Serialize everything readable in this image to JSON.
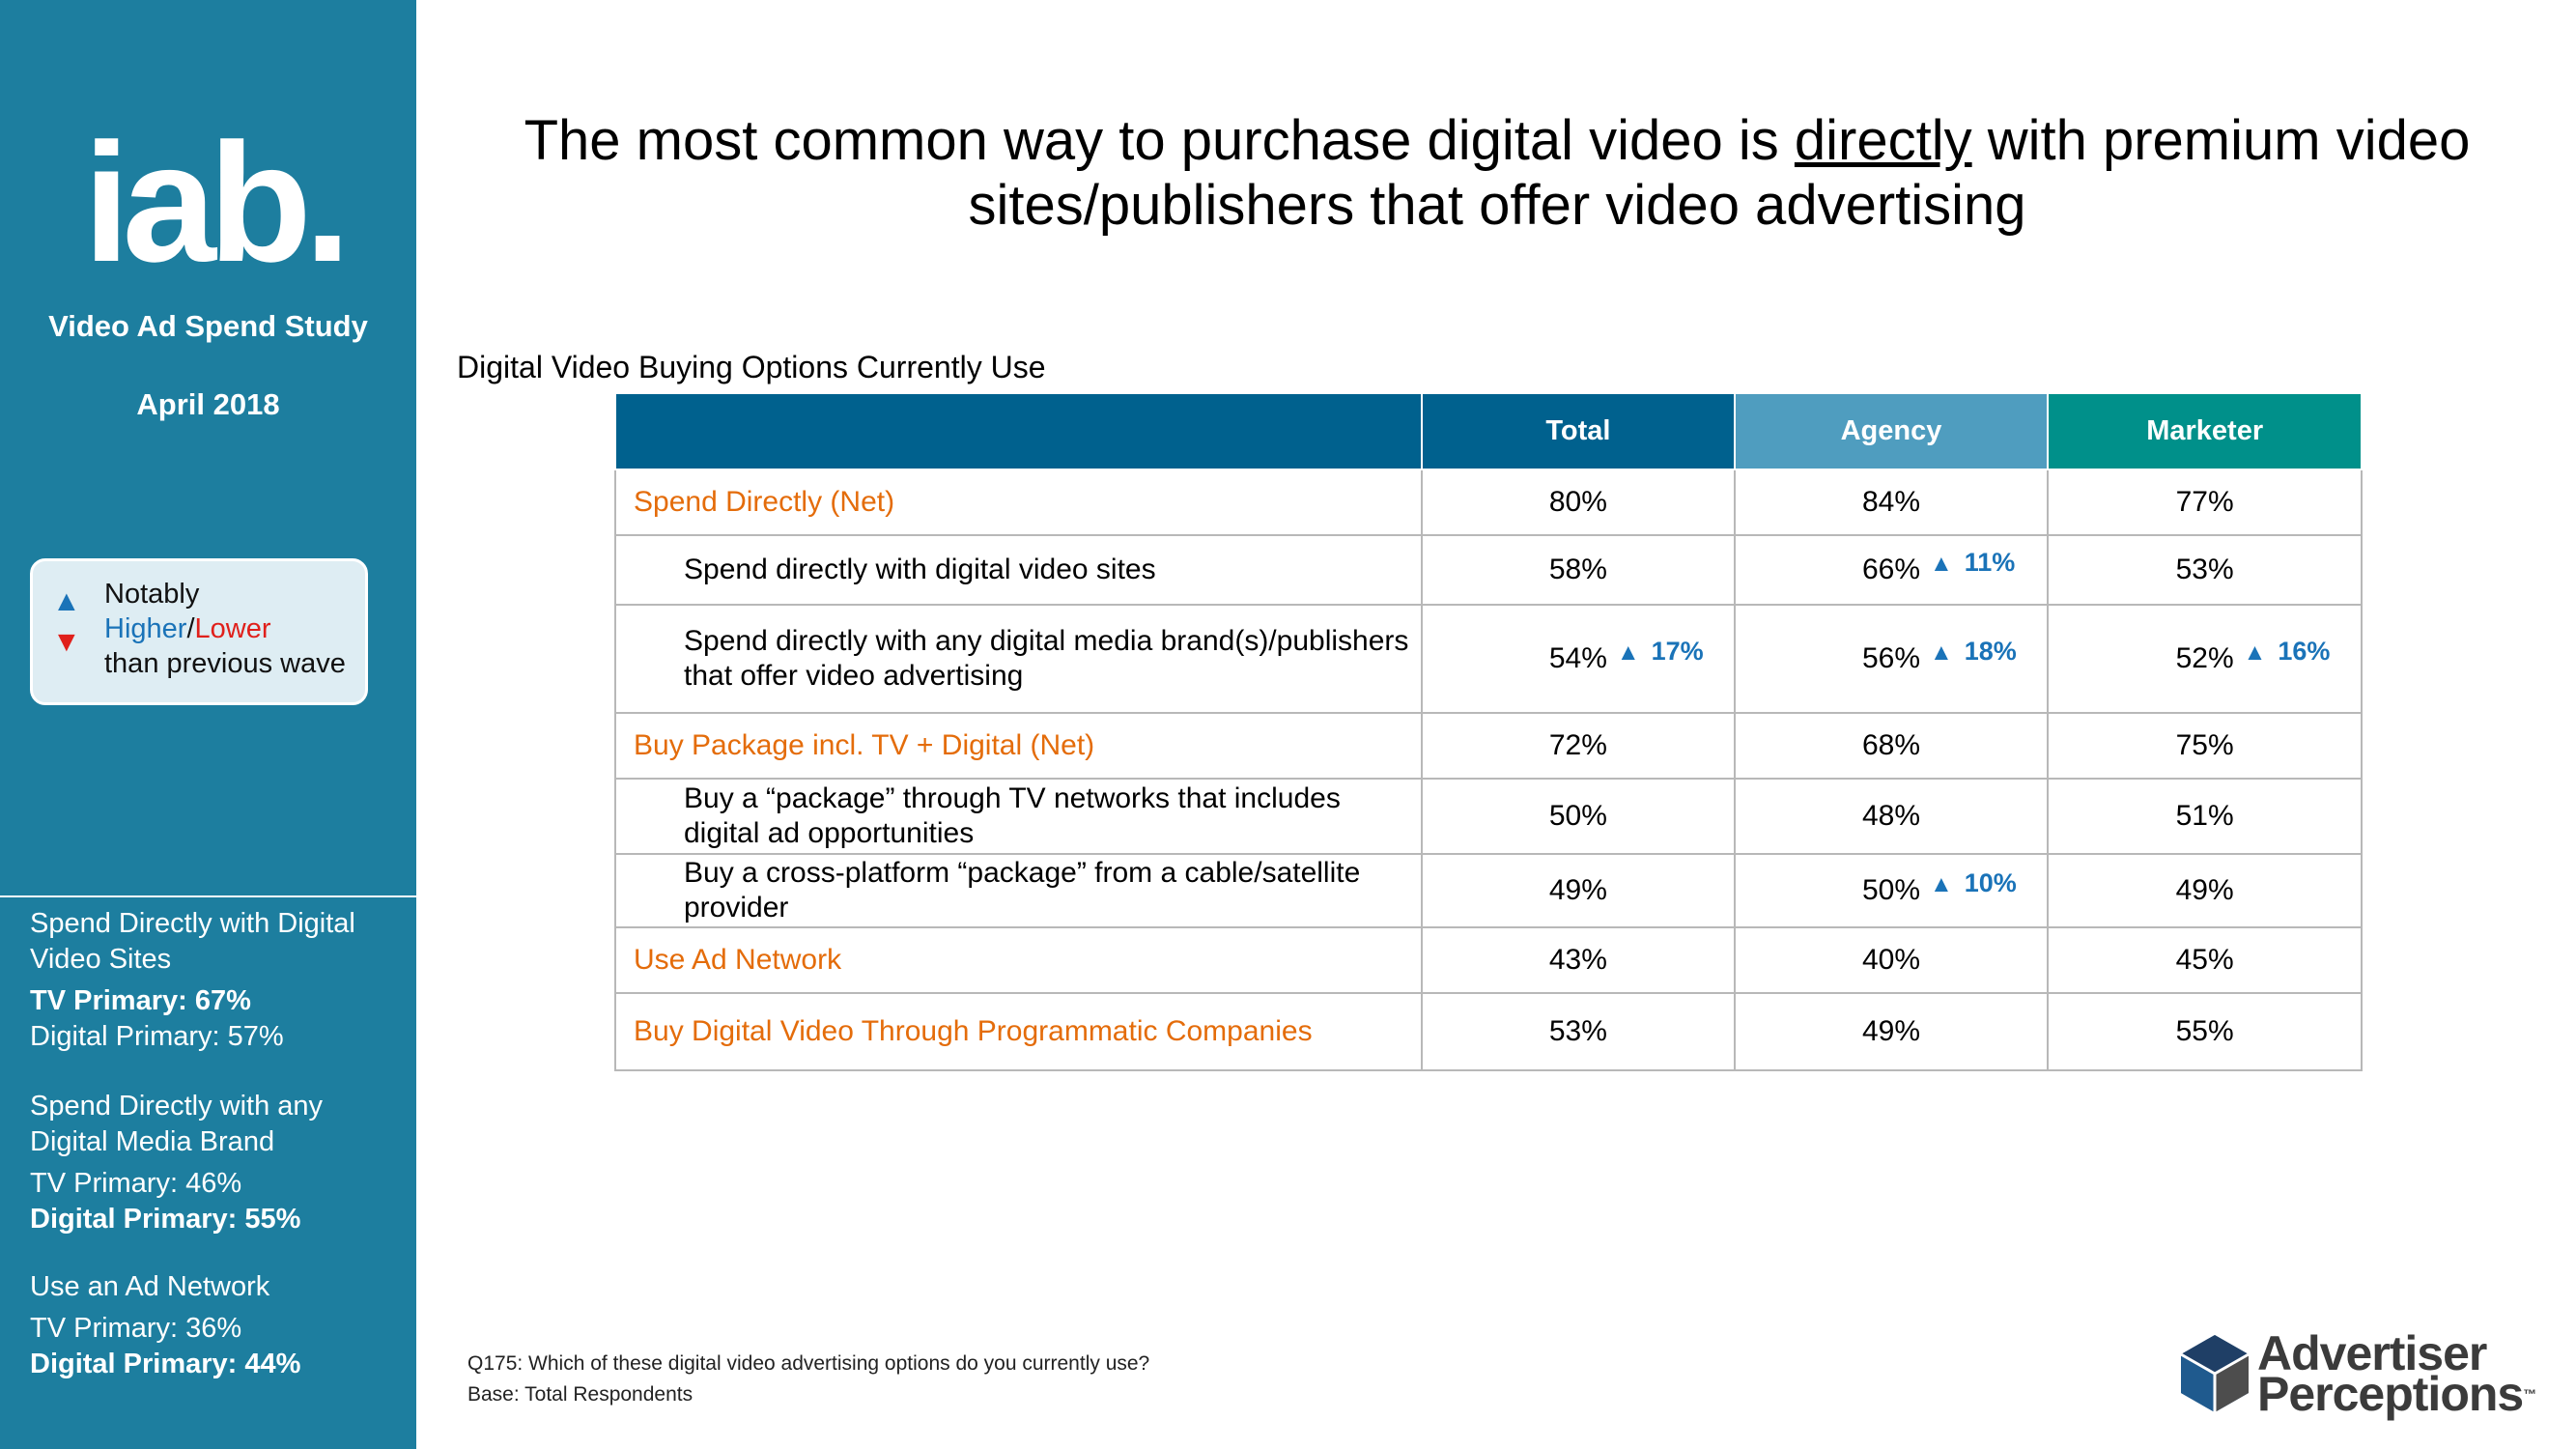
{
  "sidebar": {
    "logo_text": "iab.",
    "study": "Video Ad Spend Study",
    "date": "April 2018",
    "legend": {
      "arrow_up": "▲",
      "arrow_down": "▼",
      "line1": "Notably",
      "higher": "Higher",
      "sep": "/",
      "lower": "Lower",
      "line3": "than previous wave"
    },
    "blocks": [
      {
        "heading": "Spend Directly with Digital Video Sites",
        "tv": "TV Primary: 67%",
        "digital": "Digital Primary: 57%"
      },
      {
        "heading": "Spend Directly with any Digital Media Brand",
        "tv": "TV Primary: 46%",
        "digital": "Digital Primary: 55%"
      },
      {
        "heading": "Use an Ad Network",
        "tv": "TV Primary: 36%",
        "digital": "Digital Primary: 44%"
      }
    ]
  },
  "title": {
    "part1": "The most common way to purchase digital video is ",
    "underlined": "directly",
    "part2": " with premium video sites/publishers that offer video advertising"
  },
  "chart_data": {
    "type": "table",
    "title": "Digital Video Buying Options Currently Use",
    "columns": [
      "Total",
      "Agency",
      "Marketer"
    ],
    "rows": [
      {
        "label": "Spend Directly (Net)",
        "net": true,
        "values": [
          "80%",
          "84%",
          "77%"
        ],
        "arrows": [
          "",
          "",
          ""
        ]
      },
      {
        "label": "Spend directly with digital video sites",
        "net": false,
        "values": [
          "58%",
          "66%",
          "53%"
        ],
        "arrows": [
          "",
          "11%",
          ""
        ]
      },
      {
        "label": "Spend directly with any digital media brand(s)/publishers that offer video advertising",
        "net": false,
        "values": [
          "54%",
          "56%",
          "52%"
        ],
        "arrows": [
          "17%",
          "18%",
          "16%"
        ]
      },
      {
        "label": "Buy Package incl. TV + Digital (Net)",
        "net": true,
        "values": [
          "72%",
          "68%",
          "75%"
        ],
        "arrows": [
          "",
          "",
          ""
        ]
      },
      {
        "label": "Buy a “package” through TV networks that includes digital ad opportunities",
        "net": false,
        "values": [
          "50%",
          "48%",
          "51%"
        ],
        "arrows": [
          "",
          "",
          ""
        ]
      },
      {
        "label": "Buy a cross-platform “package” from a cable/satellite provider",
        "net": false,
        "values": [
          "49%",
          "50%",
          "49%"
        ],
        "arrows": [
          "",
          "10%",
          ""
        ]
      },
      {
        "label": "Use Ad Network",
        "net": true,
        "values": [
          "43%",
          "40%",
          "45%"
        ],
        "arrows": [
          "",
          "",
          ""
        ]
      },
      {
        "label": "Buy Digital Video Through Programmatic Companies",
        "net": true,
        "values": [
          "53%",
          "49%",
          "55%"
        ],
        "arrows": [
          "",
          "",
          ""
        ]
      }
    ]
  },
  "footnote": {
    "question": "Q175: Which of these digital video advertising options do you currently use?",
    "base": "Base: Total Respondents"
  },
  "brand": {
    "line1": "Advertiser",
    "line2": "Perceptions",
    "tm": "™"
  },
  "colors": {
    "sidebar": "#1d7e9f",
    "total_header": "#00618e",
    "agency_header": "#4f9dbf",
    "marketer_header": "#00908a",
    "net_label": "#e46c0a",
    "arrow": "#1a73b8"
  }
}
